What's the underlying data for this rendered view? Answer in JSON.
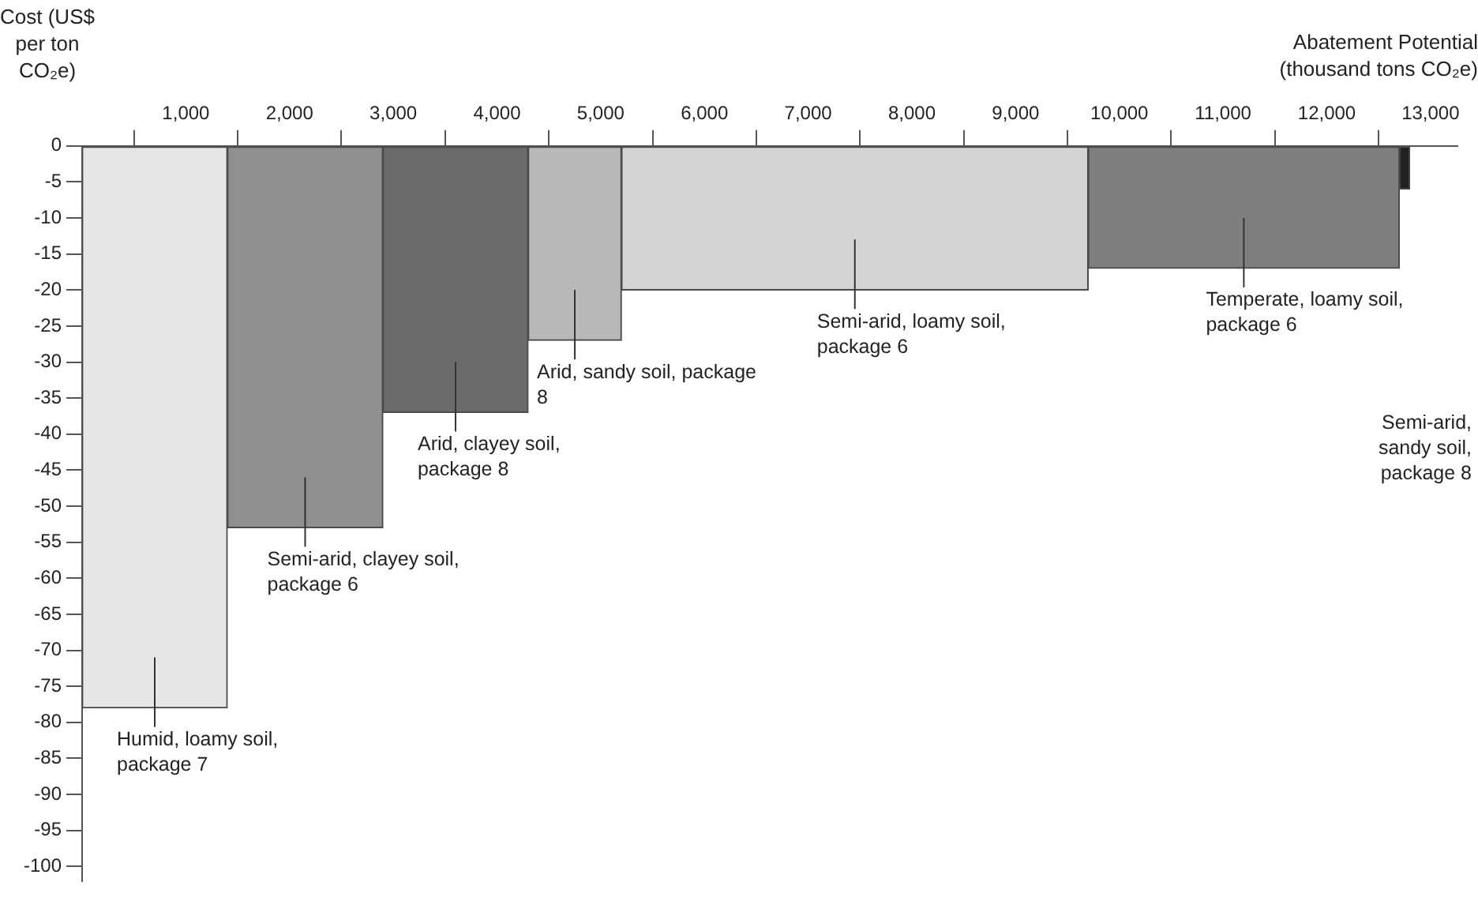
{
  "chart_data": {
    "type": "histogram",
    "xlabel": "Abatement Potential (thousand tons CO₂e)",
    "ylabel": "Cost (US$ per ton CO₂e)",
    "bins": [
      0,
      1400,
      2900,
      4300,
      5200,
      9700,
      12700,
      12800
    ],
    "values": [
      -78,
      -53,
      -37,
      -27,
      -20,
      -17,
      -6
    ],
    "colors": [
      "#e6e6e6",
      "#8f8f8f",
      "#6b6b6b",
      "#b8b8b8",
      "#d4d4d4",
      "#7f7f7f",
      "#222222"
    ],
    "xlim": [
      0,
      13260
    ],
    "xticks": [
      {
        "value": 1000,
        "label": "1,000"
      },
      {
        "value": 2000,
        "label": "2,000"
      },
      {
        "value": 3000,
        "label": "3,000"
      },
      {
        "value": 4000,
        "label": "4,000"
      },
      {
        "value": 5000,
        "label": "5,000"
      },
      {
        "value": 6000,
        "label": "6,000"
      },
      {
        "value": 7000,
        "label": "7,000"
      },
      {
        "value": 8000,
        "label": "8,000"
      },
      {
        "value": 9000,
        "label": "9,000"
      },
      {
        "value": 10000,
        "label": "10,000"
      },
      {
        "value": 11000,
        "label": "11,000"
      },
      {
        "value": 12000,
        "label": "12,000"
      },
      {
        "value": 13000,
        "label": "13,000"
      }
    ],
    "ylim": [
      -102,
      0
    ],
    "yticks": [
      0,
      -5,
      -10,
      -15,
      -20,
      -25,
      -30,
      -35,
      -40,
      -45,
      -50,
      -55,
      -60,
      -65,
      -70,
      -75,
      -80,
      -85,
      -90,
      -95,
      -100
    ],
    "annotations": [
      {
        "text": "Humid, loamy soil, package 7",
        "x": 700,
        "y": -78
      },
      {
        "text": "Semi-arid, clayey soil, package 6",
        "x": 2150,
        "y": -53
      },
      {
        "text": "Arid, clayey soil, package 8",
        "x": 3600,
        "y": -37
      },
      {
        "text": "Arid, sandy soil, package 8",
        "x": 4750,
        "y": -27
      },
      {
        "text": "Semi-arid, loamy soil, package 6",
        "x": 7450,
        "y": -20
      },
      {
        "text": "Temperate, loamy soil, package 6",
        "x": 11200,
        "y": -17
      },
      "Semi-arid, sandy soil, package 8"
    ]
  }
}
